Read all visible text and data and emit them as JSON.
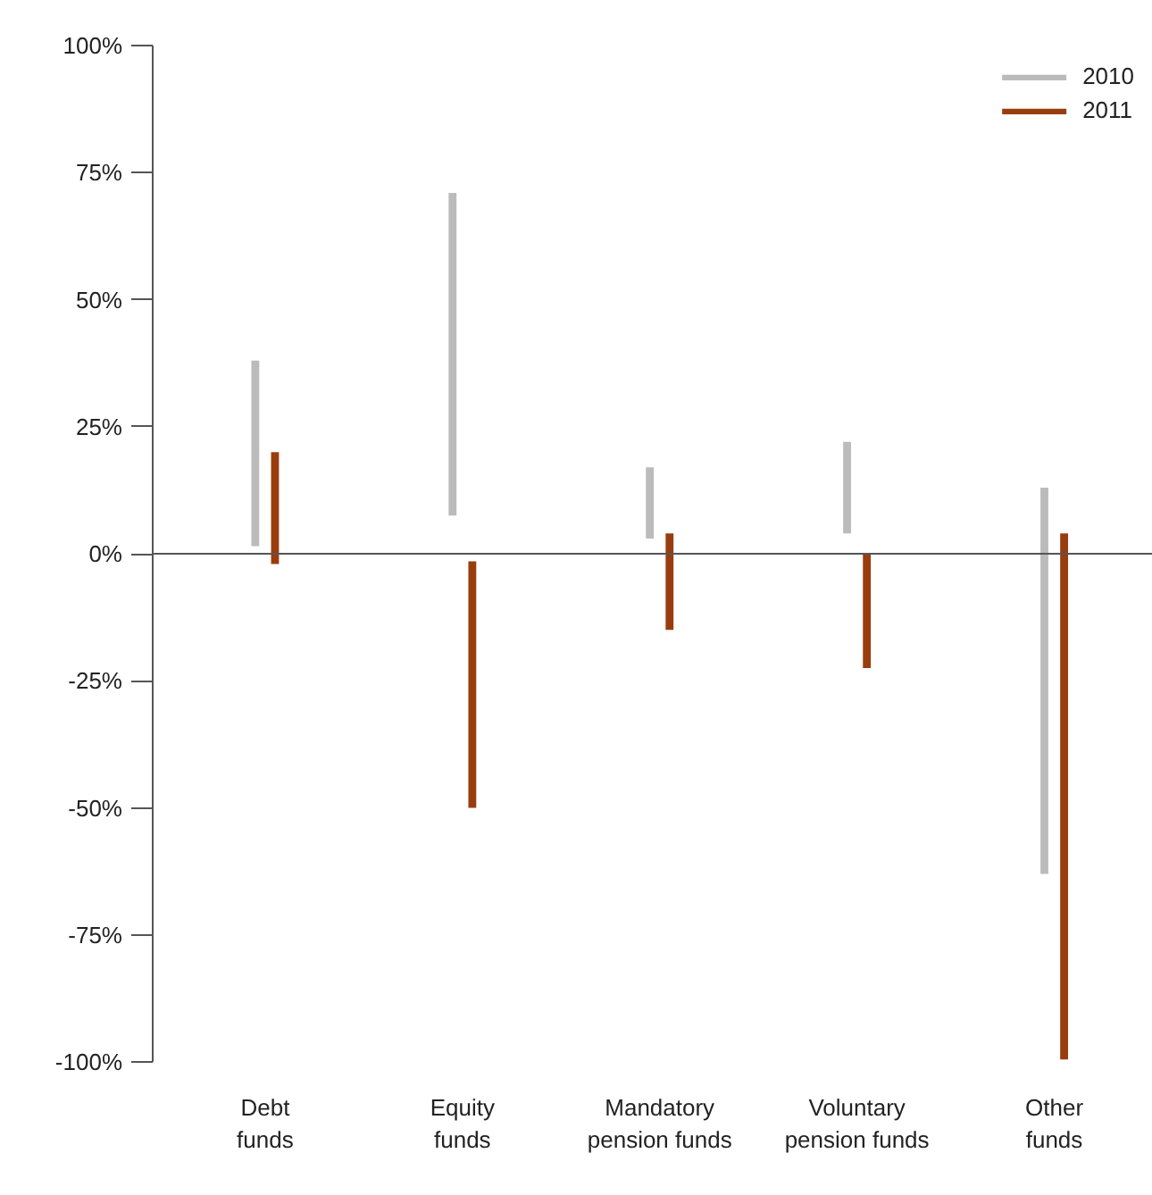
{
  "chart_data": {
    "type": "bar",
    "categories": [
      "Debt\nfunds",
      "Equity\nfunds",
      "Mandatory\npension funds",
      "Voluntary\npension funds",
      "Other\nfunds"
    ],
    "series": [
      {
        "name": "2010",
        "color": "#bbbbbb",
        "base": [
          1.5,
          7.5,
          3,
          4,
          -63
        ],
        "values": [
          36.5,
          63.5,
          14,
          18,
          76
        ]
      },
      {
        "name": "2011",
        "color": "#993d0f",
        "base": [
          -2,
          -50,
          -15,
          -22.5,
          -99.5
        ],
        "values": [
          22,
          48.5,
          19,
          22.5,
          103.5
        ]
      }
    ],
    "ylim": [
      -100,
      100
    ],
    "yticks": [
      {
        "value": -100,
        "label": "-100%"
      },
      {
        "value": -75,
        "label": "-75%"
      },
      {
        "value": -50,
        "label": "-50%"
      },
      {
        "value": -25,
        "label": "-25%"
      },
      {
        "value": 0,
        "label": "0%"
      },
      {
        "value": 25,
        "label": "25%"
      },
      {
        "value": 50,
        "label": "50%"
      },
      {
        "value": 75,
        "label": "75%"
      },
      {
        "value": 100,
        "label": "100%"
      }
    ],
    "ref_lines": [
      {
        "axis": "y",
        "value": 0,
        "color": "#555555"
      }
    ],
    "grid": false,
    "legend": "top right"
  }
}
